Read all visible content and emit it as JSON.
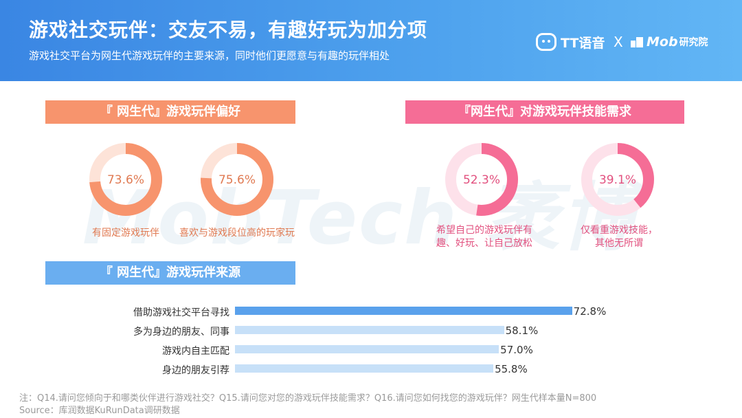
{
  "header": {
    "title": "游戏社交玩伴：交友不易，有趣好玩为加分项",
    "subtitle": "游戏社交平台为网生代游戏玩伴的主要来源，同时他们更愿意与有趣的玩伴相处",
    "brand_tt": "TT语音",
    "brand_x": "X",
    "brand_mob": "Mob",
    "brand_mob_cn": "研究院"
  },
  "watermark": "MobTech 袤博",
  "colors": {
    "preference": "#f7946d",
    "preference_light": "#fde3d8",
    "skill": "#f56d96",
    "skill_light": "#fde1ea",
    "source_top": "#5aa1ec",
    "source_rest": "#c7e0f8"
  },
  "chart_data": [
    {
      "type": "pie",
      "title": "『 网生代』游戏玩伴偏好",
      "items": [
        {
          "label": "有固定游戏玩伴",
          "value": 73.6,
          "display": "73.6%"
        },
        {
          "label": "喜欢与游戏段位高的玩家玩",
          "value": 75.6,
          "display": "75.6%"
        }
      ]
    },
    {
      "type": "pie",
      "title": "『网生代』对游戏玩伴技能需求",
      "items": [
        {
          "label_line1": "希望自己的游戏玩伴有",
          "label_line2": "趣、好玩、让自己放松",
          "value": 52.3,
          "display": "52.3%"
        },
        {
          "label_line1": "仅看重游戏技能，",
          "label_line2": "其他无所谓",
          "value": 39.1,
          "display": "39.1%"
        }
      ]
    },
    {
      "type": "bar",
      "orientation": "horizontal",
      "title": "『 网生代』游戏玩伴来源",
      "xlim": [
        0,
        100
      ],
      "categories": [
        "借助游戏社交平台寻找",
        "多为身边的朋友、同事",
        "游戏内自主匹配",
        "身边的朋友引荐"
      ],
      "values": [
        72.8,
        58.1,
        57.0,
        55.8
      ],
      "labels": [
        "72.8%",
        "58.1%",
        "57.0%",
        "55.8%"
      ]
    }
  ],
  "footer": {
    "note": "注：Q14.请问您倾向于和哪类伙伴进行游戏社交？Q15.请问您对您的游戏玩伴技能需求？Q16.请问您如何找您的游戏玩伴？网生代样本量N=800",
    "source": "Source：库润数据KuRunData调研数据"
  }
}
